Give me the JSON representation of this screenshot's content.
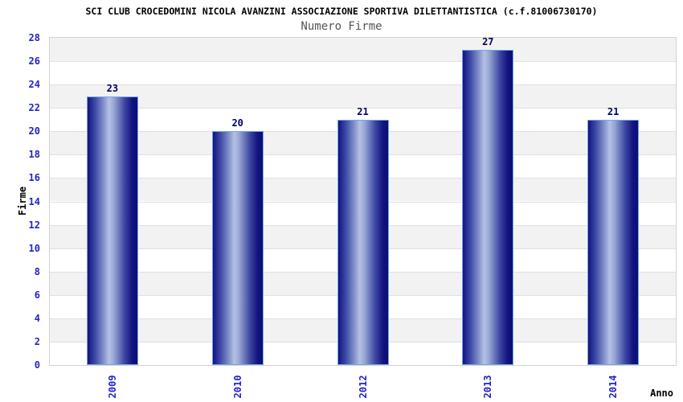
{
  "chart_data": {
    "type": "bar",
    "title": "SCI CLUB CROCEDOMINI NICOLA AVANZINI ASSOCIAZIONE SPORTIVA DILETTANTISTICA (c.f.81006730170)",
    "subtitle": "Numero Firme",
    "xlabel": "Anno",
    "ylabel": "Firme",
    "categories": [
      "2009",
      "2010",
      "2012",
      "2013",
      "2014"
    ],
    "values": [
      23,
      20,
      21,
      27,
      21
    ],
    "ylim": [
      0,
      28
    ],
    "ytick_step": 2,
    "grid": true,
    "legend": "none",
    "colors": {
      "tick_label": "#2222CC",
      "value_label": "#000066",
      "title": "#000000",
      "subtitle": "#555555",
      "band_gray": "#F2F2F2",
      "band_white": "#FFFFFF",
      "gridline": "#E0E0E0",
      "plot_border": "#D2D2D2",
      "bar_dark": "#13137F",
      "bar_mid": "#3D4AA5",
      "bar_light": "#B5C1E3",
      "bar_border": "#6FA8F0"
    }
  }
}
